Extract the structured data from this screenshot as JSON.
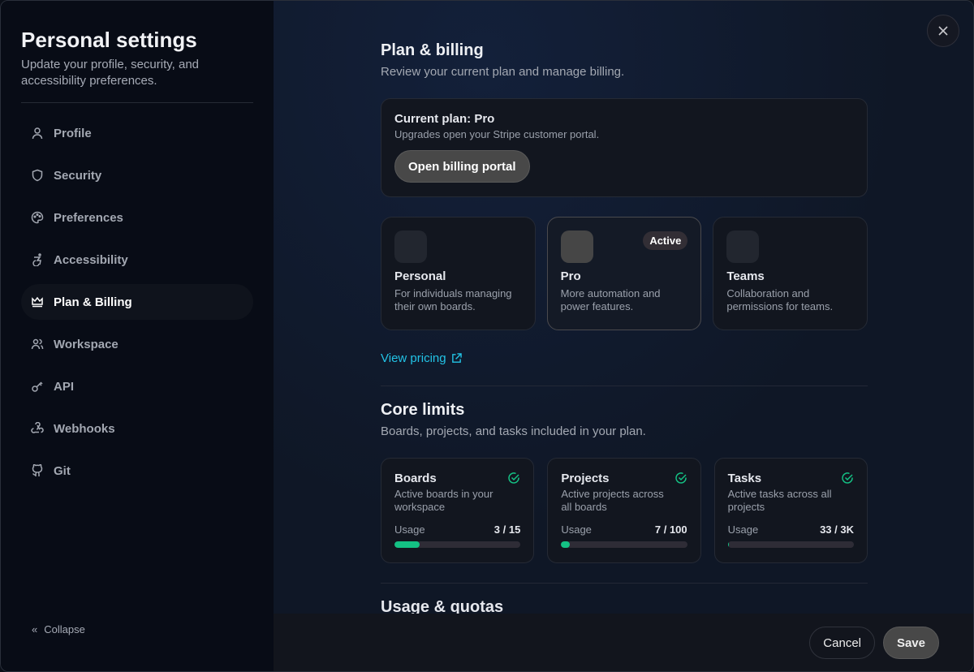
{
  "sidebar": {
    "title": "Personal settings",
    "subtitle": "Update your profile, security, and accessibility preferences.",
    "items": [
      {
        "label": "Profile"
      },
      {
        "label": "Security"
      },
      {
        "label": "Preferences"
      },
      {
        "label": "Accessibility"
      },
      {
        "label": "Plan & Billing",
        "active": true
      },
      {
        "label": "Workspace"
      },
      {
        "label": "API"
      },
      {
        "label": "Webhooks"
      },
      {
        "label": "Git"
      }
    ],
    "collapse": "Collapse"
  },
  "billing": {
    "title": "Plan & billing",
    "desc": "Review your current plan and manage billing.",
    "current_title": "Current plan: Pro",
    "current_sub": "Upgrades open your Stripe customer portal.",
    "portal_button": "Open billing portal",
    "plans": [
      {
        "name": "Personal",
        "desc": "For individuals managing their own boards."
      },
      {
        "name": "Pro",
        "desc": "More automation and power features.",
        "badge": "Active"
      },
      {
        "name": "Teams",
        "desc": "Collaboration and permissions for teams."
      }
    ],
    "view_pricing": "View pricing"
  },
  "limits": {
    "title": "Core limits",
    "desc": "Boards, projects, and tasks included in your plan.",
    "usage_label": "Usage",
    "items": [
      {
        "name": "Boards",
        "desc": "Active boards in your workspace",
        "value": "3 / 15",
        "percent": 20
      },
      {
        "name": "Projects",
        "desc": "Active projects across all boards",
        "value": "7 / 100",
        "percent": 7
      },
      {
        "name": "Tasks",
        "desc": "Active tasks across all projects",
        "value": "33 / 3K",
        "percent": 1.1
      }
    ]
  },
  "next_section": "Usage & quotas",
  "footer": {
    "cancel": "Cancel",
    "save": "Save"
  },
  "colors": {
    "accent": "#14c184",
    "link": "#22c3e6"
  }
}
